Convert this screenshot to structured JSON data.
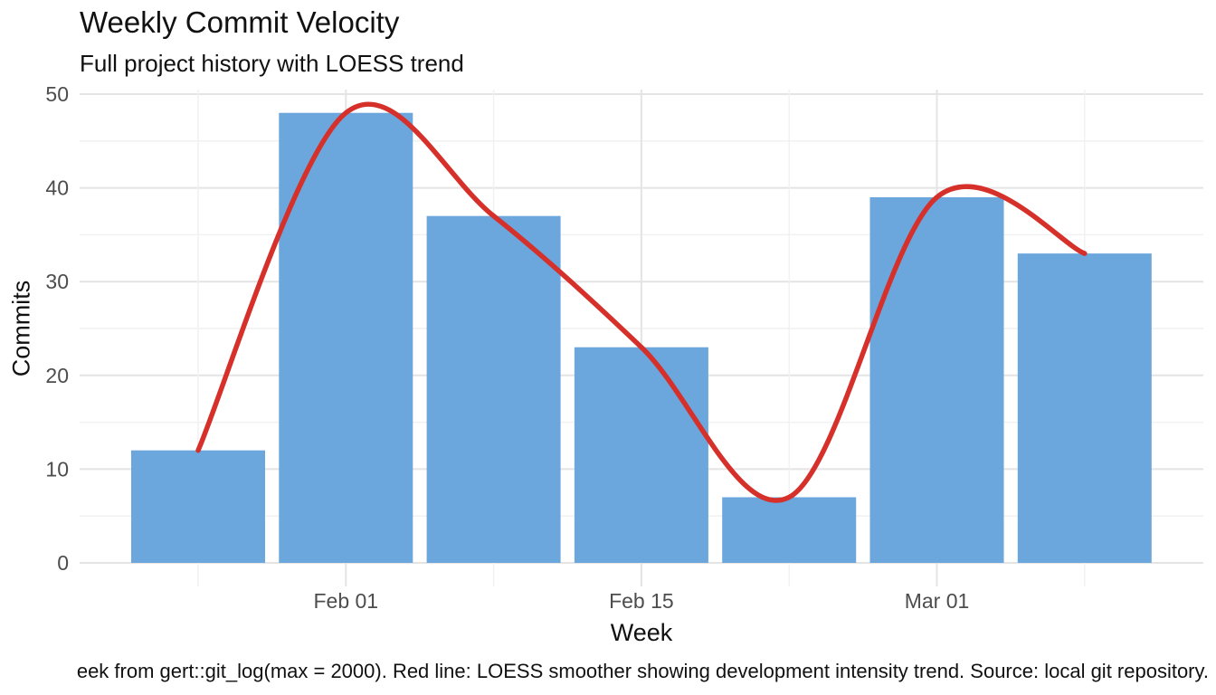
{
  "chart_data": {
    "type": "bar+line",
    "title": "Weekly Commit Velocity",
    "subtitle": "Full project history with LOESS trend",
    "xlabel": "Week",
    "ylabel": "Commits",
    "caption": "eek from gert::git_log(max = 2000). Red line: LOESS smoother showing development intensity trend. Source: local git repository.",
    "bars": {
      "name": "weekly-commits",
      "values": [
        12,
        48,
        37,
        23,
        7,
        39,
        33
      ]
    },
    "line": {
      "name": "loess-trend",
      "smooth": true,
      "values": [
        12,
        48,
        37,
        23,
        7,
        39,
        33
      ]
    },
    "x_ticks": [
      {
        "label": "Feb 01",
        "index": 1
      },
      {
        "label": "Feb 15",
        "index": 3
      },
      {
        "label": "Mar 01",
        "index": 5
      }
    ],
    "y_ticks": [
      0,
      10,
      20,
      30,
      40,
      50
    ],
    "ylim": [
      0,
      50
    ],
    "grid": true,
    "legend": "none",
    "colors": {
      "bar_fill": "#6BA6DC",
      "line_stroke": "#D6302A",
      "grid_major": "#E4E4E4",
      "grid_minor": "#F1F1F1",
      "tick_text": "#4D4D4D",
      "title_text": "#111111",
      "background": "#FFFFFF"
    }
  }
}
